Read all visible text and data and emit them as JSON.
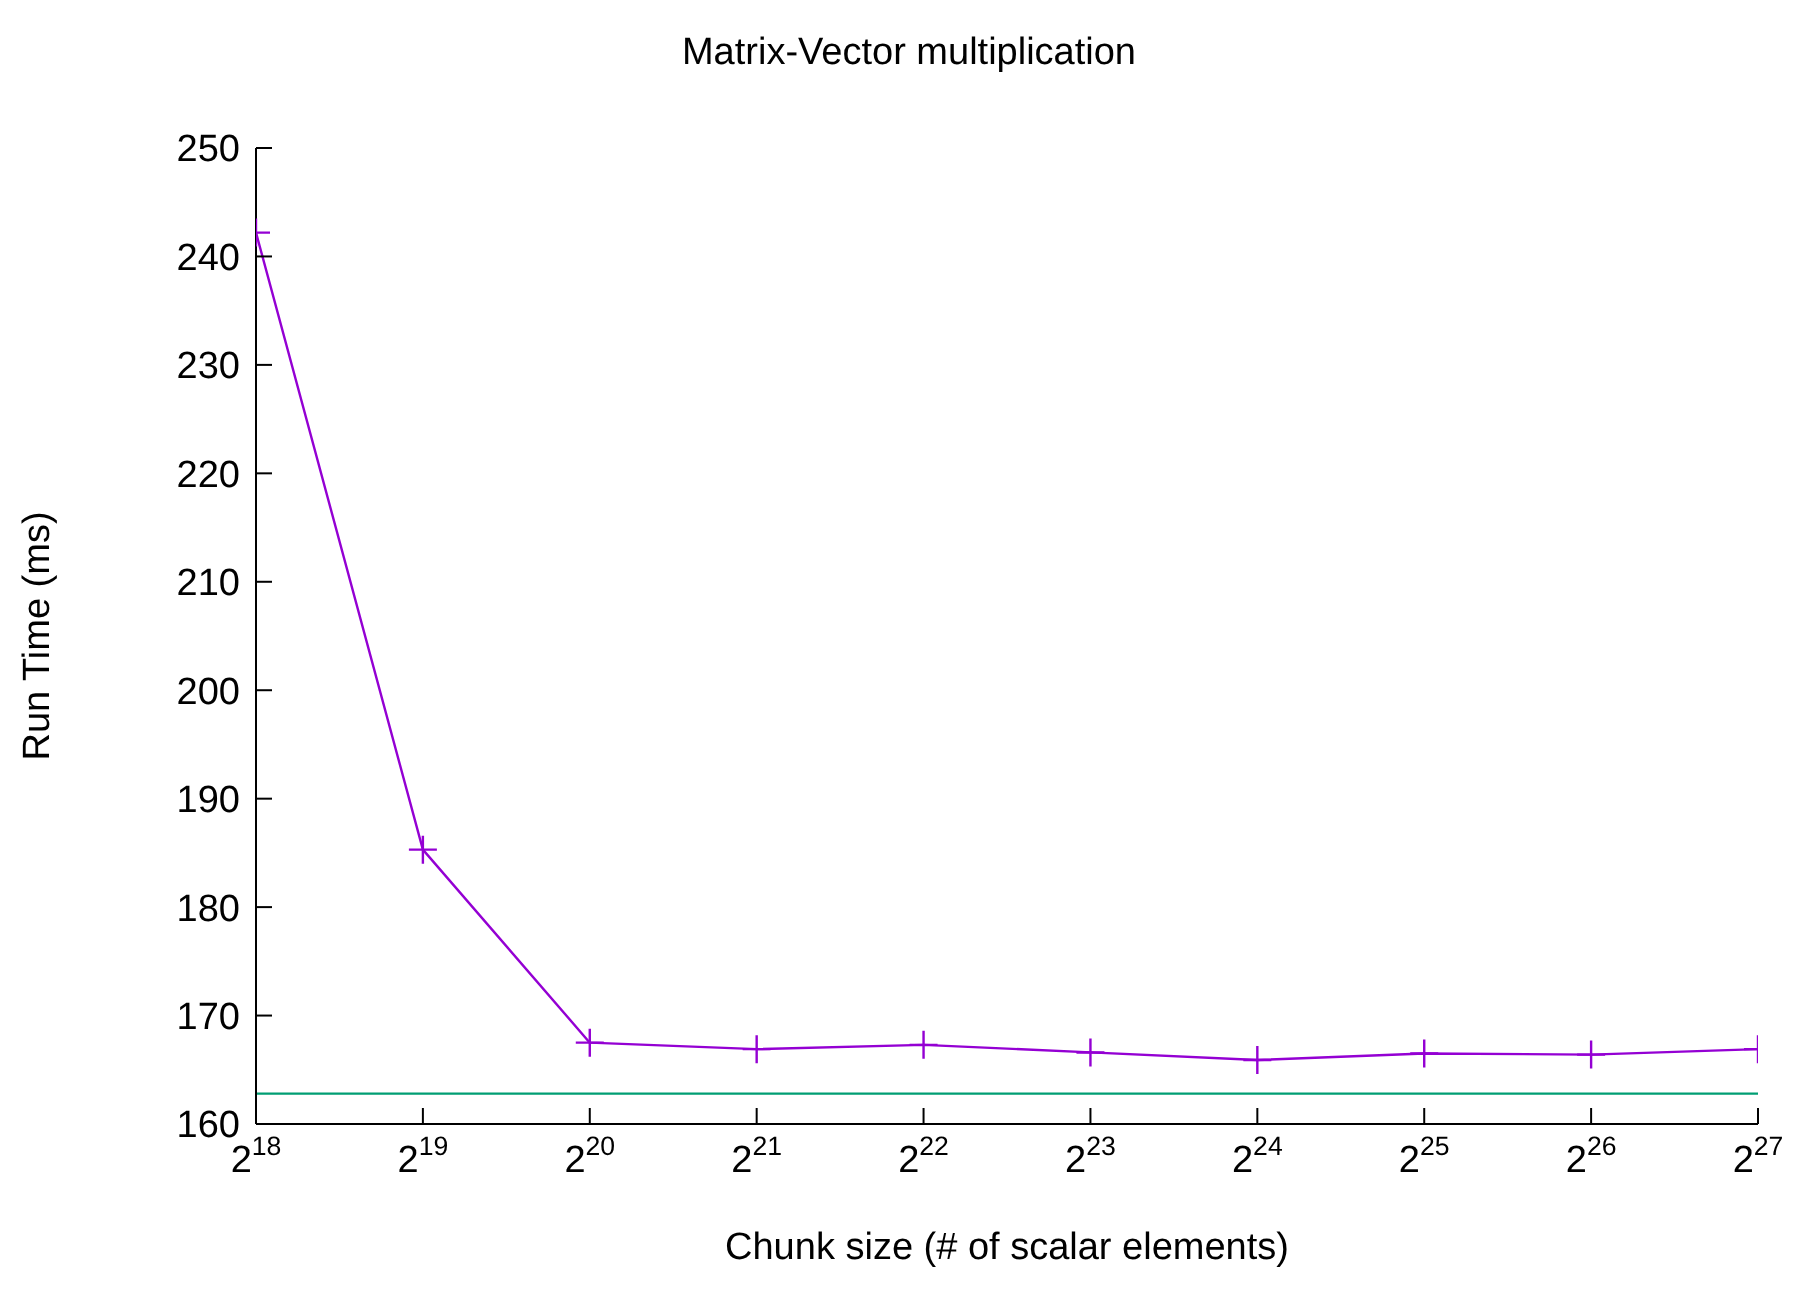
{
  "chart_data": {
    "type": "line",
    "title": "Matrix-Vector multiplication",
    "xlabel": "Chunk size (# of scalar elements)",
    "ylabel": "Run Time (ms)",
    "log": "x",
    "x": [
      262144,
      524288,
      1048576,
      2097152,
      4194304,
      8388608,
      16777216,
      33554432,
      67108864,
      134217728
    ],
    "series": [
      {
        "color": "#9400d3",
        "marker": "cross",
        "values": [
          242.2,
          185.3,
          167.5,
          166.9,
          167.3,
          166.6,
          165.9,
          166.5,
          166.4,
          166.9
        ]
      },
      {
        "color": "#009e73",
        "marker": "none",
        "x": [
          262144,
          134217728
        ],
        "values": [
          162.8,
          162.8
        ]
      }
    ],
    "xlim": [
      262144,
      134217728
    ],
    "xticks": [
      {
        "value": 262144,
        "label": "2$^{18}$"
      },
      {
        "value": 524288,
        "label": "2$^{19}$"
      },
      {
        "value": 1048576,
        "label": "2$^{20}$"
      },
      {
        "value": 2097152,
        "label": "2$^{21}$"
      },
      {
        "value": 4194304,
        "label": "2$^{22}$"
      },
      {
        "value": 8388608,
        "label": "2$^{23}$"
      },
      {
        "value": 16777216,
        "label": "2$^{24}$"
      },
      {
        "value": 33554432,
        "label": "2$^{25}$"
      },
      {
        "value": 67108864,
        "label": "2$^{26}$"
      },
      {
        "value": 134217728,
        "label": "2$^{27}$"
      }
    ],
    "ylim": [
      160,
      250
    ],
    "yticks": [
      160,
      170,
      180,
      190,
      200,
      210,
      220,
      230,
      240,
      250
    ],
    "grid": false,
    "legend": false
  }
}
